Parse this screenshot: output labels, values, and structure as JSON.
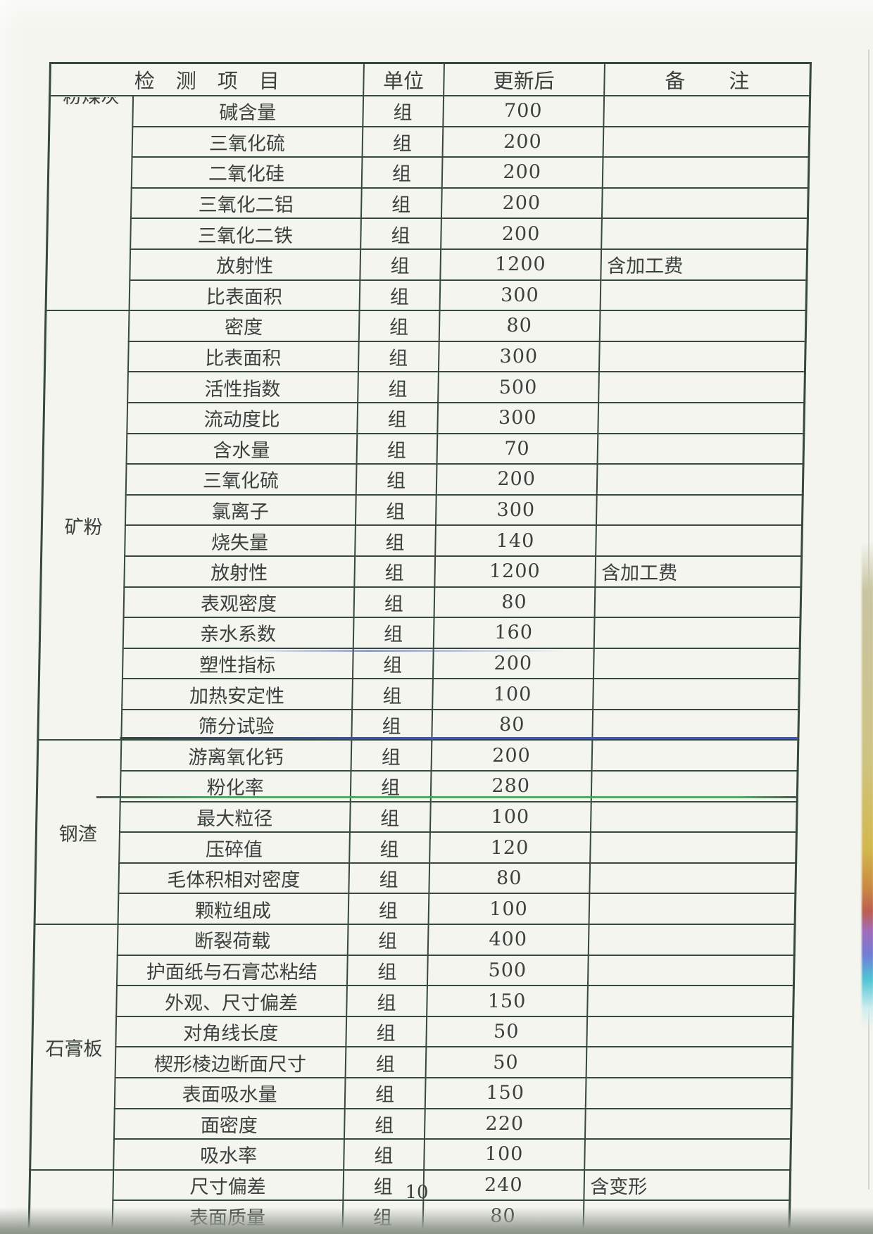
{
  "document": {
    "page_number": "10"
  },
  "colors": {
    "paper": "#f3f5ee",
    "table_line": "#35493e",
    "text": "#3a413c",
    "row_line_blue": "#3d53cf",
    "row_line_green": "#2fae49",
    "bottom_band": "#99a096",
    "rainbow": [
      "#c9c5a2",
      "#cfc482",
      "#d4b84e",
      "#cc8a44",
      "#bd5f4e",
      "#a36bbb",
      "#6f7fd6",
      "#4fc5d6",
      "#cfeef0"
    ]
  },
  "table": {
    "header": {
      "item": "检测项目",
      "unit": "单位",
      "price": "更新后",
      "remark": "备注"
    },
    "sections": [
      {
        "category": "粉煤灰",
        "clipped": true,
        "rows": [
          {
            "item": "碱含量",
            "unit": "组",
            "price": "700",
            "remark": ""
          },
          {
            "item": "三氧化硫",
            "unit": "组",
            "price": "200",
            "remark": ""
          },
          {
            "item": "二氧化硅",
            "unit": "组",
            "price": "200",
            "remark": ""
          },
          {
            "item": "三氧化二铝",
            "unit": "组",
            "price": "200",
            "remark": ""
          },
          {
            "item": "三氧化二铁",
            "unit": "组",
            "price": "200",
            "remark": ""
          },
          {
            "item": "放射性",
            "unit": "组",
            "price": "1200",
            "remark": "含加工费"
          },
          {
            "item": "比表面积",
            "unit": "组",
            "price": "300",
            "remark": ""
          }
        ]
      },
      {
        "category": "矿粉",
        "clipped": false,
        "rows": [
          {
            "item": "密度",
            "unit": "组",
            "price": "80",
            "remark": ""
          },
          {
            "item": "比表面积",
            "unit": "组",
            "price": "300",
            "remark": ""
          },
          {
            "item": "活性指数",
            "unit": "组",
            "price": "500",
            "remark": ""
          },
          {
            "item": "流动度比",
            "unit": "组",
            "price": "300",
            "remark": ""
          },
          {
            "item": "含水量",
            "unit": "组",
            "price": "70",
            "remark": ""
          },
          {
            "item": "三氧化硫",
            "unit": "组",
            "price": "200",
            "remark": ""
          },
          {
            "item": "氯离子",
            "unit": "组",
            "price": "300",
            "remark": ""
          },
          {
            "item": "烧失量",
            "unit": "组",
            "price": "140",
            "remark": ""
          },
          {
            "item": "放射性",
            "unit": "组",
            "price": "1200",
            "remark": "含加工费"
          },
          {
            "item": "表观密度",
            "unit": "组",
            "price": "80",
            "remark": ""
          },
          {
            "item": "亲水系数",
            "unit": "组",
            "price": "160",
            "remark": ""
          },
          {
            "item": "塑性指标",
            "unit": "组",
            "price": "200",
            "remark": ""
          },
          {
            "item": "加热安定性",
            "unit": "组",
            "price": "100",
            "remark": ""
          },
          {
            "item": "筛分试验",
            "unit": "组",
            "price": "80",
            "remark": ""
          }
        ]
      },
      {
        "category": "钢渣",
        "clipped": false,
        "rows": [
          {
            "item": "游离氧化钙",
            "unit": "组",
            "price": "200",
            "remark": ""
          },
          {
            "item": "粉化率",
            "unit": "组",
            "price": "280",
            "remark": ""
          },
          {
            "item": "最大粒径",
            "unit": "组",
            "price": "100",
            "remark": ""
          },
          {
            "item": "压碎值",
            "unit": "组",
            "price": "120",
            "remark": ""
          },
          {
            "item": "毛体积相对密度",
            "unit": "组",
            "price": "80",
            "remark": ""
          },
          {
            "item": "颗粒组成",
            "unit": "组",
            "price": "100",
            "remark": ""
          }
        ]
      },
      {
        "category": "石膏板",
        "clipped": false,
        "rows": [
          {
            "item": "断裂荷载",
            "unit": "组",
            "price": "400",
            "remark": ""
          },
          {
            "item": "护面纸与石膏芯粘结",
            "unit": "组",
            "price": "500",
            "remark": ""
          },
          {
            "item": "外观、尺寸偏差",
            "unit": "组",
            "price": "150",
            "remark": ""
          },
          {
            "item": "对角线长度",
            "unit": "组",
            "price": "50",
            "remark": ""
          },
          {
            "item": "楔形棱边断面尺寸",
            "unit": "组",
            "price": "50",
            "remark": ""
          },
          {
            "item": "表面吸水量",
            "unit": "组",
            "price": "150",
            "remark": ""
          },
          {
            "item": "面密度",
            "unit": "组",
            "price": "220",
            "remark": ""
          },
          {
            "item": "吸水率",
            "unit": "组",
            "price": "100",
            "remark": ""
          }
        ]
      },
      {
        "category": "",
        "clipped": false,
        "rows": [
          {
            "item": "尺寸偏差",
            "unit": "组",
            "price": "240",
            "remark": "含变形"
          },
          {
            "item": "表面质量",
            "unit": "组",
            "price": "80",
            "remark": ""
          }
        ]
      }
    ]
  }
}
